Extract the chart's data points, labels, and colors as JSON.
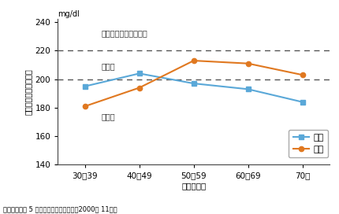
{
  "categories": [
    "30～39",
    "40～49",
    "50～59",
    "60～69",
    "70～"
  ],
  "male_values": [
    195,
    204,
    197,
    193,
    184
  ],
  "female_values": [
    181,
    194,
    213,
    211,
    203
  ],
  "male_color": "#5aa8d8",
  "female_color": "#e07820",
  "ylim": [
    140,
    242
  ],
  "yticks": [
    140,
    160,
    180,
    200,
    220,
    240
  ],
  "hline_220": 220,
  "hline_200": 200,
  "label_high": "高コレステロール血症",
  "label_boundary": "境界域",
  "label_normal": "適正域",
  "ylabel": "血清総コレステロール",
  "unit_label": "mg/dl",
  "xlabel": "年齢（才）",
  "legend_male": "男性",
  "legend_female": "女性",
  "source": "厄生労働省第 5 次循環器疾患基礎調査（2000年 11月）"
}
